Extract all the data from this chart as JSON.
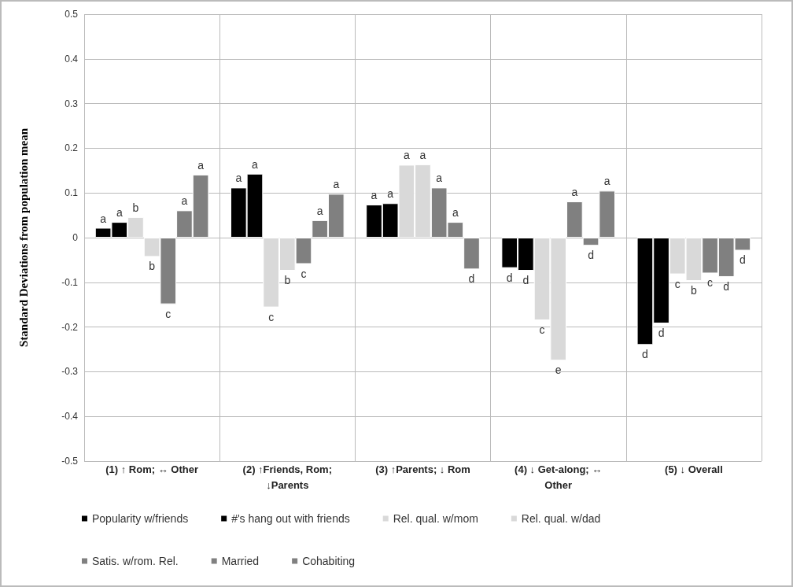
{
  "chart_data": {
    "type": "bar",
    "ylabel": "Standard Deviations from population mean",
    "categories": [
      "(1) ↑ Rom; ↔ Other",
      "(2) ↑Friends, Rom;\n↓Parents",
      "(3) ↑Parents; ↓ Rom",
      "(4) ↓ Get-along; ↔\nOther",
      "(5) ↓ Overall"
    ],
    "series": [
      {
        "name": "Popularity w/friends",
        "color": "#000000",
        "values": [
          0.022,
          0.112,
          0.074,
          -0.068,
          -0.24
        ],
        "value_labels": [
          "a",
          "a",
          "a",
          "d",
          "d"
        ]
      },
      {
        "name": "#'s hang out with friends",
        "color": "#000000",
        "values": [
          0.035,
          0.143,
          0.077,
          -0.074,
          -0.192
        ],
        "value_labels": [
          "a",
          "a",
          "a",
          "d",
          "d"
        ]
      },
      {
        "name": "Rel. qual. w/mom",
        "color": "#d9d9d9",
        "values": [
          0.046,
          -0.156,
          0.163,
          -0.185,
          -0.082
        ],
        "value_labels": [
          "b",
          "c",
          "a",
          "c",
          "c"
        ]
      },
      {
        "name": "Rel. qual. w/dad",
        "color": "#d9d9d9",
        "values": [
          -0.043,
          -0.074,
          0.164,
          -0.275,
          -0.097
        ],
        "value_labels": [
          "b",
          "b",
          "a",
          "e",
          "b"
        ]
      },
      {
        "name": "Satis. w/rom. Rel.",
        "color": "#808080",
        "values": [
          -0.149,
          -0.059,
          0.112,
          0.081,
          -0.08
        ],
        "value_labels": [
          "c",
          "c",
          "a",
          "a",
          "c"
        ]
      },
      {
        "name": "Married",
        "color": "#808080",
        "values": [
          0.061,
          0.039,
          0.035,
          -0.018,
          -0.088
        ],
        "value_labels": [
          "a",
          "a",
          "a",
          "d",
          "d"
        ]
      },
      {
        "name": "Cohabiting",
        "color": "#808080",
        "values": [
          0.141,
          0.098,
          -0.071,
          0.105,
          -0.029
        ],
        "value_labels": [
          "a",
          "a",
          "d",
          "a",
          "d"
        ]
      }
    ],
    "ylim": [
      -0.5,
      0.5
    ],
    "yticks": [
      -0.5,
      -0.4,
      -0.3,
      -0.2,
      -0.1,
      0,
      0.1,
      0.2,
      0.3,
      0.4,
      0.5
    ],
    "grid": true,
    "legend": "bottom"
  }
}
